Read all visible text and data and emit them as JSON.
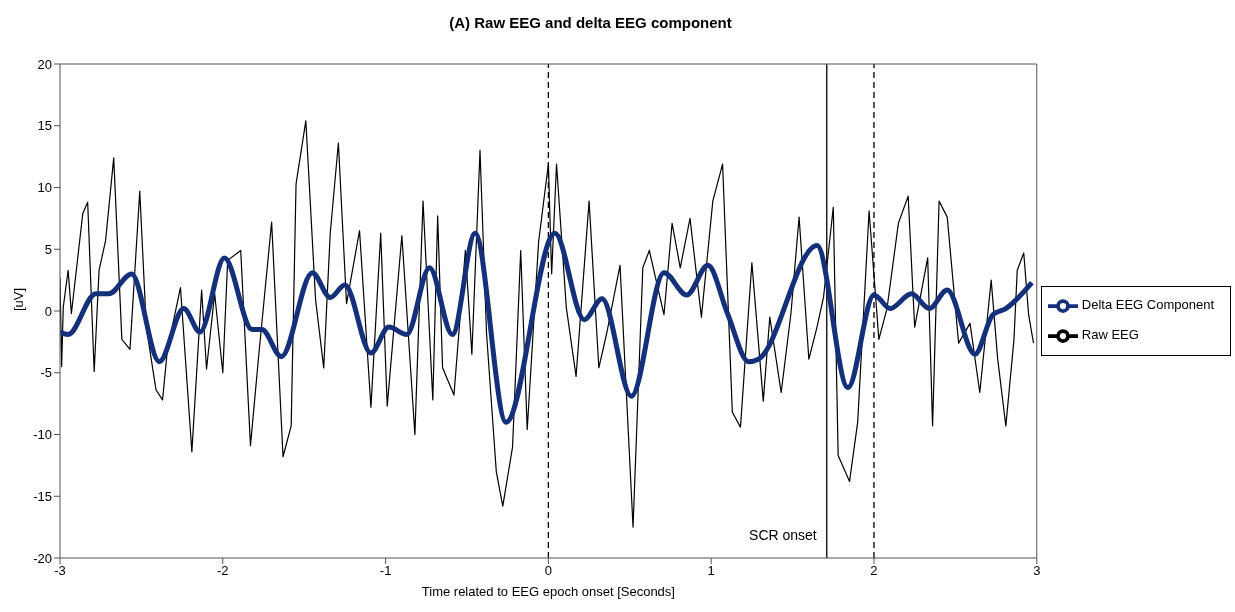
{
  "chart_data": {
    "type": "line",
    "title": "(A)  Raw EEG and delta EEG component",
    "xlabel": "Time related to EEG epoch onset [Seconds]",
    "ylabel": "[uV]",
    "xlim": [
      -3,
      3
    ],
    "xticks": [
      -3,
      -2,
      -1,
      0,
      1,
      2,
      3
    ],
    "ylim": [
      -20,
      20
    ],
    "yticks": [
      -20,
      -15,
      -10,
      -5,
      0,
      5,
      10,
      15,
      20
    ],
    "grid": false,
    "legend": "right",
    "series": [
      {
        "name": "Raw EEG",
        "color": "#000000",
        "x": [
          -3.0,
          -2.99,
          -2.98,
          -2.95,
          -2.93,
          -2.86,
          -2.83,
          -2.79,
          -2.76,
          -2.72,
          -2.67,
          -2.62,
          -2.57,
          -2.51,
          -2.47,
          -2.41,
          -2.37,
          -2.34,
          -2.26,
          -2.19,
          -2.13,
          -2.1,
          -2.05,
          -2.0,
          -1.97,
          -1.89,
          -1.83,
          -1.78,
          -1.7,
          -1.63,
          -1.58,
          -1.55,
          -1.49,
          -1.43,
          -1.38,
          -1.34,
          -1.29,
          -1.24,
          -1.16,
          -1.09,
          -1.03,
          -0.99,
          -0.9,
          -0.82,
          -0.77,
          -0.71,
          -0.68,
          -0.65,
          -0.58,
          -0.51,
          -0.47,
          -0.42,
          -0.38,
          -0.32,
          -0.28,
          -0.22,
          -0.17,
          -0.13,
          -0.06,
          0.0,
          0.02,
          0.05,
          0.11,
          0.17,
          0.25,
          0.31,
          0.36,
          0.44,
          0.52,
          0.58,
          0.62,
          0.71,
          0.76,
          0.81,
          0.87,
          0.94,
          1.01,
          1.07,
          1.13,
          1.18,
          1.25,
          1.32,
          1.36,
          1.43,
          1.49,
          1.54,
          1.6,
          1.65,
          1.69,
          1.75,
          1.78,
          1.85,
          1.9,
          1.97,
          2.03,
          2.08,
          2.15,
          2.21,
          2.25,
          2.33,
          2.36,
          2.4,
          2.45,
          2.52,
          2.59,
          2.65,
          2.72,
          2.76,
          2.81,
          2.86,
          2.88,
          2.92,
          2.95,
          2.98
        ],
        "values": [
          2.7,
          -4.5,
          0.3,
          3.3,
          -0.2,
          7.9,
          8.8,
          -4.9,
          3.3,
          5.7,
          12.4,
          -2.3,
          -3.1,
          9.7,
          -1.3,
          -6.4,
          -7.2,
          -3.1,
          1.9,
          -11.4,
          1.7,
          -4.7,
          1.4,
          -5.0,
          4.1,
          4.9,
          -10.9,
          -3.7,
          7.2,
          -11.8,
          -9.3,
          10.3,
          15.4,
          0.9,
          -4.6,
          6.3,
          13.6,
          0.6,
          6.5,
          -7.8,
          6.3,
          -7.7,
          6.1,
          -10.0,
          8.9,
          -7.2,
          7.7,
          -4.6,
          -6.8,
          4.9,
          -3.5,
          13.0,
          -1.8,
          -13.0,
          -15.8,
          -11.0,
          4.9,
          -9.6,
          5.6,
          11.9,
          3.0,
          11.9,
          0.3,
          -5.3,
          8.9,
          -4.6,
          -1.7,
          3.7,
          -17.5,
          3.5,
          4.9,
          -0.3,
          7.1,
          3.5,
          7.5,
          -0.5,
          8.9,
          11.9,
          -8.2,
          -9.4,
          3.9,
          -7.3,
          -0.5,
          -6.6,
          -0.2,
          7.6,
          -3.9,
          -1.3,
          1.1,
          8.4,
          -11.7,
          -13.8,
          -9.0,
          8.1,
          -2.3,
          0.2,
          7.1,
          9.3,
          -1.3,
          4.3,
          -9.3,
          8.9,
          7.6,
          -2.6,
          -1.0,
          -6.6,
          2.5,
          -3.9,
          -9.3,
          -2.3,
          3.3,
          4.7,
          -0.3,
          -2.6
        ]
      },
      {
        "name": "Delta EEG Component",
        "color": "#14307a",
        "x": [
          -3.0,
          -2.95,
          -2.78,
          -2.7,
          -2.56,
          -2.39,
          -2.24,
          -2.14,
          -1.99,
          -1.82,
          -1.76,
          -1.64,
          -1.45,
          -1.34,
          -1.25,
          -1.09,
          -0.98,
          -0.87,
          -0.73,
          -0.59,
          -0.45,
          -0.26,
          0.04,
          0.22,
          0.33,
          0.51,
          0.71,
          0.85,
          0.98,
          1.1,
          1.23,
          1.29,
          1.65,
          1.84,
          2.0,
          2.1,
          2.23,
          2.34,
          2.45,
          2.62,
          2.73,
          2.81,
          2.97
        ],
        "values": [
          -1.7,
          -1.9,
          1.4,
          1.4,
          3.0,
          -4.1,
          0.2,
          -1.7,
          4.3,
          -1.5,
          -1.5,
          -3.7,
          3.1,
          1.1,
          2.1,
          -3.4,
          -1.3,
          -1.9,
          3.5,
          -1.9,
          6.3,
          -9.0,
          6.3,
          -0.7,
          1.0,
          -6.9,
          3.1,
          1.3,
          3.7,
          -0.2,
          -4.1,
          -3.9,
          5.3,
          -6.2,
          1.3,
          0.2,
          1.4,
          0.2,
          1.7,
          -3.5,
          -0.3,
          0.2,
          2.3
        ]
      }
    ],
    "ref_lines": [
      {
        "axis": "x",
        "value": 0,
        "line_style": "dashed",
        "color": "#000000"
      },
      {
        "axis": "x",
        "value": 1.71,
        "label": "SCR onset",
        "line_style": "solid",
        "color": "#000000"
      },
      {
        "axis": "x",
        "value": 2,
        "line_style": "dashed",
        "color": "#000000"
      }
    ]
  }
}
